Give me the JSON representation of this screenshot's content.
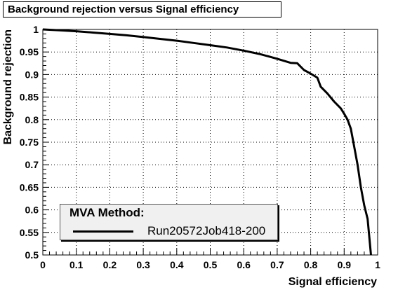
{
  "chart_data": {
    "type": "line",
    "title": "Background rejection versus Signal efficiency",
    "xlabel": "Signal efficiency",
    "ylabel": "Background rejection",
    "xlim": [
      0,
      1
    ],
    "ylim": [
      0.5,
      1
    ],
    "xticks": [
      "0",
      "0.1",
      "0.2",
      "0.3",
      "0.4",
      "0.5",
      "0.6",
      "0.7",
      "0.8",
      "0.9",
      "1"
    ],
    "yticks": [
      "0.5",
      "0.55",
      "0.6",
      "0.65",
      "0.7",
      "0.75",
      "0.8",
      "0.85",
      "0.9",
      "0.95",
      "1"
    ],
    "grid": true,
    "legend": {
      "title": "MVA Method:",
      "placement": "bottom-left"
    },
    "series": [
      {
        "name": "Run20572Job418-200",
        "color": "#000000",
        "x": [
          0.0,
          0.05,
          0.1,
          0.15,
          0.2,
          0.25,
          0.3,
          0.35,
          0.4,
          0.45,
          0.5,
          0.55,
          0.6,
          0.65,
          0.7,
          0.74,
          0.76,
          0.78,
          0.8,
          0.82,
          0.83,
          0.85,
          0.87,
          0.89,
          0.9,
          0.91,
          0.92,
          0.93,
          0.94,
          0.95,
          0.96,
          0.97,
          0.975,
          0.98
        ],
        "y": [
          1.0,
          0.998,
          0.996,
          0.993,
          0.99,
          0.987,
          0.983,
          0.979,
          0.975,
          0.97,
          0.965,
          0.96,
          0.953,
          0.945,
          0.935,
          0.926,
          0.925,
          0.91,
          0.902,
          0.893,
          0.873,
          0.858,
          0.84,
          0.825,
          0.813,
          0.8,
          0.78,
          0.74,
          0.7,
          0.65,
          0.61,
          0.58,
          0.54,
          0.5
        ]
      }
    ]
  }
}
